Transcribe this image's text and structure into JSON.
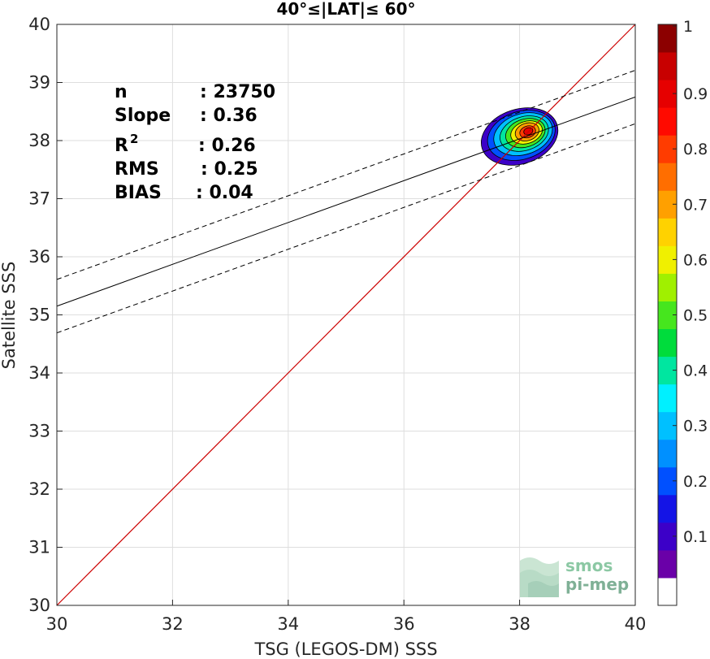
{
  "chart_data": {
    "type": "heatmap",
    "title": "40°≤|LAT|≤ 60°",
    "xlabel": "TSG (LEGOS-DM) SSS",
    "ylabel": "Satellite SSS",
    "xlim": [
      30,
      40
    ],
    "ylim": [
      30,
      40
    ],
    "x_ticks": [
      30,
      32,
      34,
      36,
      38,
      40
    ],
    "y_ticks": [
      30,
      31,
      32,
      33,
      34,
      35,
      36,
      37,
      38,
      39,
      40
    ],
    "grid": true,
    "stats": [
      {
        "label": "n",
        "value": ": 23750"
      },
      {
        "label": "Slope",
        "value": ": 0.36"
      },
      {
        "label": "R",
        "sup": "2",
        "value": ": 0.26"
      },
      {
        "label": "RMS",
        "value": ": 0.25"
      },
      {
        "label": "BIAS",
        "value": ": 0.04"
      }
    ],
    "identity_line": {
      "from": [
        30,
        30
      ],
      "to": [
        40,
        40
      ],
      "color": "#cc0000"
    },
    "fit_line": {
      "slope": 0.36,
      "at_x30": 35.15,
      "color": "#000000"
    },
    "fit_band_offset": 0.46,
    "density": {
      "center": [
        38.15,
        38.15
      ],
      "levels": [
        {
          "level": 0.1,
          "rx": 0.68,
          "ry": 0.47,
          "cx": 38.0,
          "cy": 38.07
        },
        {
          "level": 0.2,
          "rx": 0.6,
          "ry": 0.41,
          "cx": 38.03,
          "cy": 38.09
        },
        {
          "level": 0.3,
          "rx": 0.52,
          "ry": 0.35,
          "cx": 38.06,
          "cy": 38.11
        },
        {
          "level": 0.4,
          "rx": 0.43,
          "ry": 0.29,
          "cx": 38.08,
          "cy": 38.12
        },
        {
          "level": 0.5,
          "rx": 0.35,
          "ry": 0.24,
          "cx": 38.1,
          "cy": 38.13
        },
        {
          "level": 0.6,
          "rx": 0.28,
          "ry": 0.19,
          "cx": 38.12,
          "cy": 38.14
        },
        {
          "level": 0.7,
          "rx": 0.21,
          "ry": 0.15,
          "cx": 38.13,
          "cy": 38.15
        },
        {
          "level": 0.8,
          "rx": 0.14,
          "ry": 0.1,
          "cx": 38.14,
          "cy": 38.15
        },
        {
          "level": 0.9,
          "rx": 0.08,
          "ry": 0.06,
          "cx": 38.15,
          "cy": 38.16
        }
      ]
    },
    "colorbar": {
      "ticks": [
        "0.1",
        "0.2",
        "0.3",
        "0.4",
        "0.5",
        "0.6",
        "0.7",
        "0.8",
        "0.9",
        "1"
      ],
      "tick_values": [
        0.1,
        0.2,
        0.3,
        0.4,
        0.5,
        0.6,
        0.7,
        0.8,
        0.9,
        1.0
      ],
      "colors": [
        "#ffffff",
        "#6a00a8",
        "#3c00c8",
        "#1414e6",
        "#0050ff",
        "#0090ff",
        "#00c0ff",
        "#00f0ff",
        "#00e6a0",
        "#00dc3c",
        "#46e61e",
        "#a0f000",
        "#f0f000",
        "#ffd200",
        "#ffa000",
        "#ff6e00",
        "#ff3c00",
        "#ff0a00",
        "#e60000",
        "#c80000",
        "#8c0000"
      ]
    }
  },
  "watermark": {
    "line1": "smos",
    "line2": "pi-mep"
  }
}
